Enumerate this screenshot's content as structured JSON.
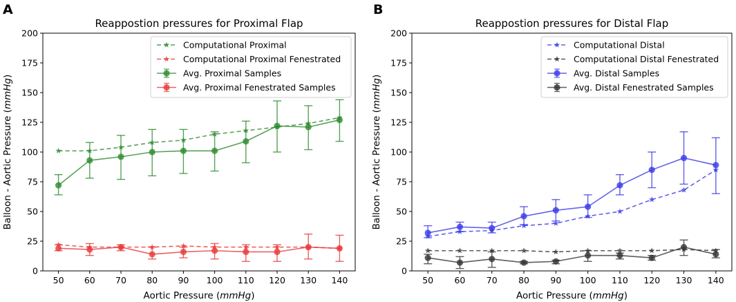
{
  "chart_data": [
    {
      "panel_label": "A",
      "type": "line",
      "title": "Reappostion pressures for Proximal Flap",
      "xlabel": "Aortic Pressure (mmHg)",
      "ylabel": "Balloon - Aortic Pressure (mmHg)",
      "xlabel_prefix": "Aortic Pressure (",
      "xlabel_unit": "mmHg",
      "xlabel_suffix": ")",
      "ylabel_prefix": "Balloon - Aortic Pressure (",
      "ylabel_unit": "mmHg",
      "ylabel_suffix": ")",
      "x": [
        50,
        60,
        70,
        80,
        90,
        100,
        110,
        120,
        130,
        140
      ],
      "xlim": [
        45,
        145
      ],
      "ylim": [
        0,
        200
      ],
      "yticks": [
        0,
        25,
        50,
        75,
        100,
        125,
        150,
        175,
        200
      ],
      "legend_position": "top-right",
      "series": [
        {
          "name": "Computational Proximal",
          "color": "#2e8b2e",
          "style": "dashed",
          "marker": "star",
          "values": [
            101,
            101,
            104,
            108,
            110,
            115,
            118,
            121,
            124,
            129
          ]
        },
        {
          "name": "Computational Proximal Fenestrated",
          "color": "#e83a3a",
          "style": "dashed",
          "marker": "star",
          "values": [
            22,
            20,
            20,
            20,
            21,
            20,
            20,
            20,
            20,
            19
          ]
        },
        {
          "name": "Avg. Proximal Samples",
          "color": "#2e8b2e",
          "style": "solid",
          "marker": "circle",
          "values": [
            72,
            93,
            96,
            100,
            101,
            101,
            109,
            122,
            121,
            127
          ],
          "err_low": [
            64,
            78,
            77,
            80,
            82,
            84,
            91,
            100,
            102,
            109
          ],
          "err_high": [
            81,
            108,
            114,
            119,
            119,
            117,
            126,
            143,
            139,
            144
          ]
        },
        {
          "name": "Avg. Proximal Fenestrated Samples",
          "color": "#e83a3a",
          "style": "solid",
          "marker": "circle",
          "values": [
            19,
            18,
            20,
            14,
            16,
            17,
            16,
            16,
            20,
            19
          ],
          "err_low": [
            17,
            13,
            17,
            10,
            11,
            10,
            8,
            8,
            10,
            8
          ],
          "err_high": [
            22,
            23,
            22,
            20,
            20,
            23,
            22,
            22,
            31,
            30
          ]
        }
      ]
    },
    {
      "panel_label": "B",
      "type": "line",
      "title": "Reappostion pressures for Distal Flap",
      "xlabel": "Aortic Pressure (mmHg)",
      "ylabel": "Balloon - Aortic Pressure (mmHg)",
      "xlabel_prefix": "Aortic Pressure (",
      "xlabel_unit": "mmHg",
      "xlabel_suffix": ")",
      "ylabel_prefix": "Balloon - Aortic Pressure (",
      "ylabel_unit": "mmHg",
      "ylabel_suffix": ")",
      "x": [
        50,
        60,
        70,
        80,
        90,
        100,
        110,
        120,
        130,
        140
      ],
      "xlim": [
        45,
        145
      ],
      "ylim": [
        0,
        200
      ],
      "yticks": [
        0,
        25,
        50,
        75,
        100,
        125,
        150,
        175,
        200
      ],
      "legend_position": "top-right",
      "series": [
        {
          "name": "Computational Distal",
          "color": "#3a3ae8",
          "style": "dashed",
          "marker": "star",
          "values": [
            29,
            33,
            34,
            38,
            40,
            46,
            50,
            60,
            68,
            85
          ]
        },
        {
          "name": "Computational Distal Fenestrated",
          "color": "#333333",
          "style": "dashed",
          "marker": "star",
          "values": [
            17,
            17,
            17,
            17,
            16,
            17,
            17,
            17,
            18,
            17
          ]
        },
        {
          "name": "Avg. Distal Samples",
          "color": "#3a3ae8",
          "style": "solid",
          "marker": "circle",
          "values": [
            32,
            37,
            36,
            46,
            51,
            54,
            72,
            85,
            95,
            89
          ],
          "err_low": [
            28,
            33,
            32,
            39,
            42,
            45,
            64,
            70,
            73,
            65
          ],
          "err_high": [
            38,
            41,
            41,
            54,
            60,
            64,
            81,
            100,
            117,
            112
          ]
        },
        {
          "name": "Avg. Distal Fenestrated Samples",
          "color": "#333333",
          "style": "solid",
          "marker": "circle",
          "values": [
            11,
            7,
            10,
            7,
            8,
            13,
            13,
            11,
            20,
            14
          ],
          "err_low": [
            6,
            2,
            3,
            6,
            6,
            8,
            10,
            9,
            13,
            11
          ],
          "err_high": [
            14,
            12,
            16,
            8,
            9,
            17,
            15,
            13,
            26,
            18
          ]
        }
      ]
    }
  ]
}
